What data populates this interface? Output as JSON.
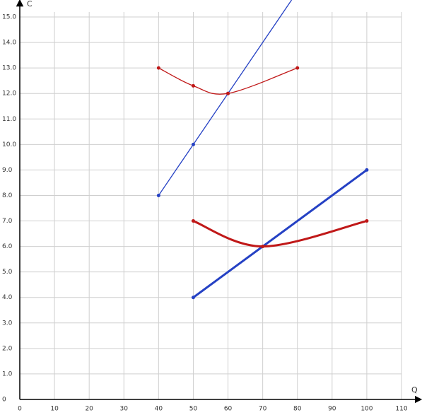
{
  "chart_data": {
    "type": "line",
    "x_label": "Q",
    "y_label": "C",
    "xlim": [
      0,
      110
    ],
    "ylim": [
      0,
      15
    ],
    "xticks": [
      0,
      10,
      20,
      30,
      40,
      50,
      60,
      70,
      80,
      90,
      100,
      110
    ],
    "yticks": [
      0,
      {
        "value": 1,
        "label": "1.0"
      },
      {
        "value": 2,
        "label": "2.0"
      },
      {
        "value": 3,
        "label": "3.0"
      },
      {
        "value": 4,
        "label": "4.0"
      },
      {
        "value": 5,
        "label": "5.0"
      },
      {
        "value": 6,
        "label": "6.0"
      },
      {
        "value": 7,
        "label": "7.0"
      },
      {
        "value": 8,
        "label": "8.0"
      },
      {
        "value": 9,
        "label": "9.0"
      },
      {
        "value": 10,
        "label": "10.0"
      },
      {
        "value": 11,
        "label": "11.0"
      },
      {
        "value": 12,
        "label": "12.0"
      },
      {
        "value": 13,
        "label": "13.0"
      },
      {
        "value": 14,
        "label": "14.0"
      },
      {
        "value": 15,
        "label": "15.0"
      }
    ],
    "grid": true,
    "series": [
      {
        "color": "#2541c4",
        "width": 1.3,
        "smooth": false,
        "extend": true,
        "x": [
          40,
          50,
          60
        ],
        "values": [
          8,
          10,
          12
        ]
      },
      {
        "color": "#c01818",
        "width": 1.3,
        "smooth": true,
        "extend": false,
        "x": [
          40,
          50,
          60,
          80
        ],
        "values": [
          13,
          12.3,
          12,
          13
        ]
      },
      {
        "color": "#2541c4",
        "width": 3,
        "smooth": false,
        "extend": false,
        "x": [
          50,
          100
        ],
        "values": [
          4,
          9
        ]
      },
      {
        "color": "#c01818",
        "width": 3,
        "smooth": true,
        "extend": false,
        "x": [
          50,
          70,
          100
        ],
        "values": [
          7,
          6,
          7
        ]
      }
    ]
  }
}
